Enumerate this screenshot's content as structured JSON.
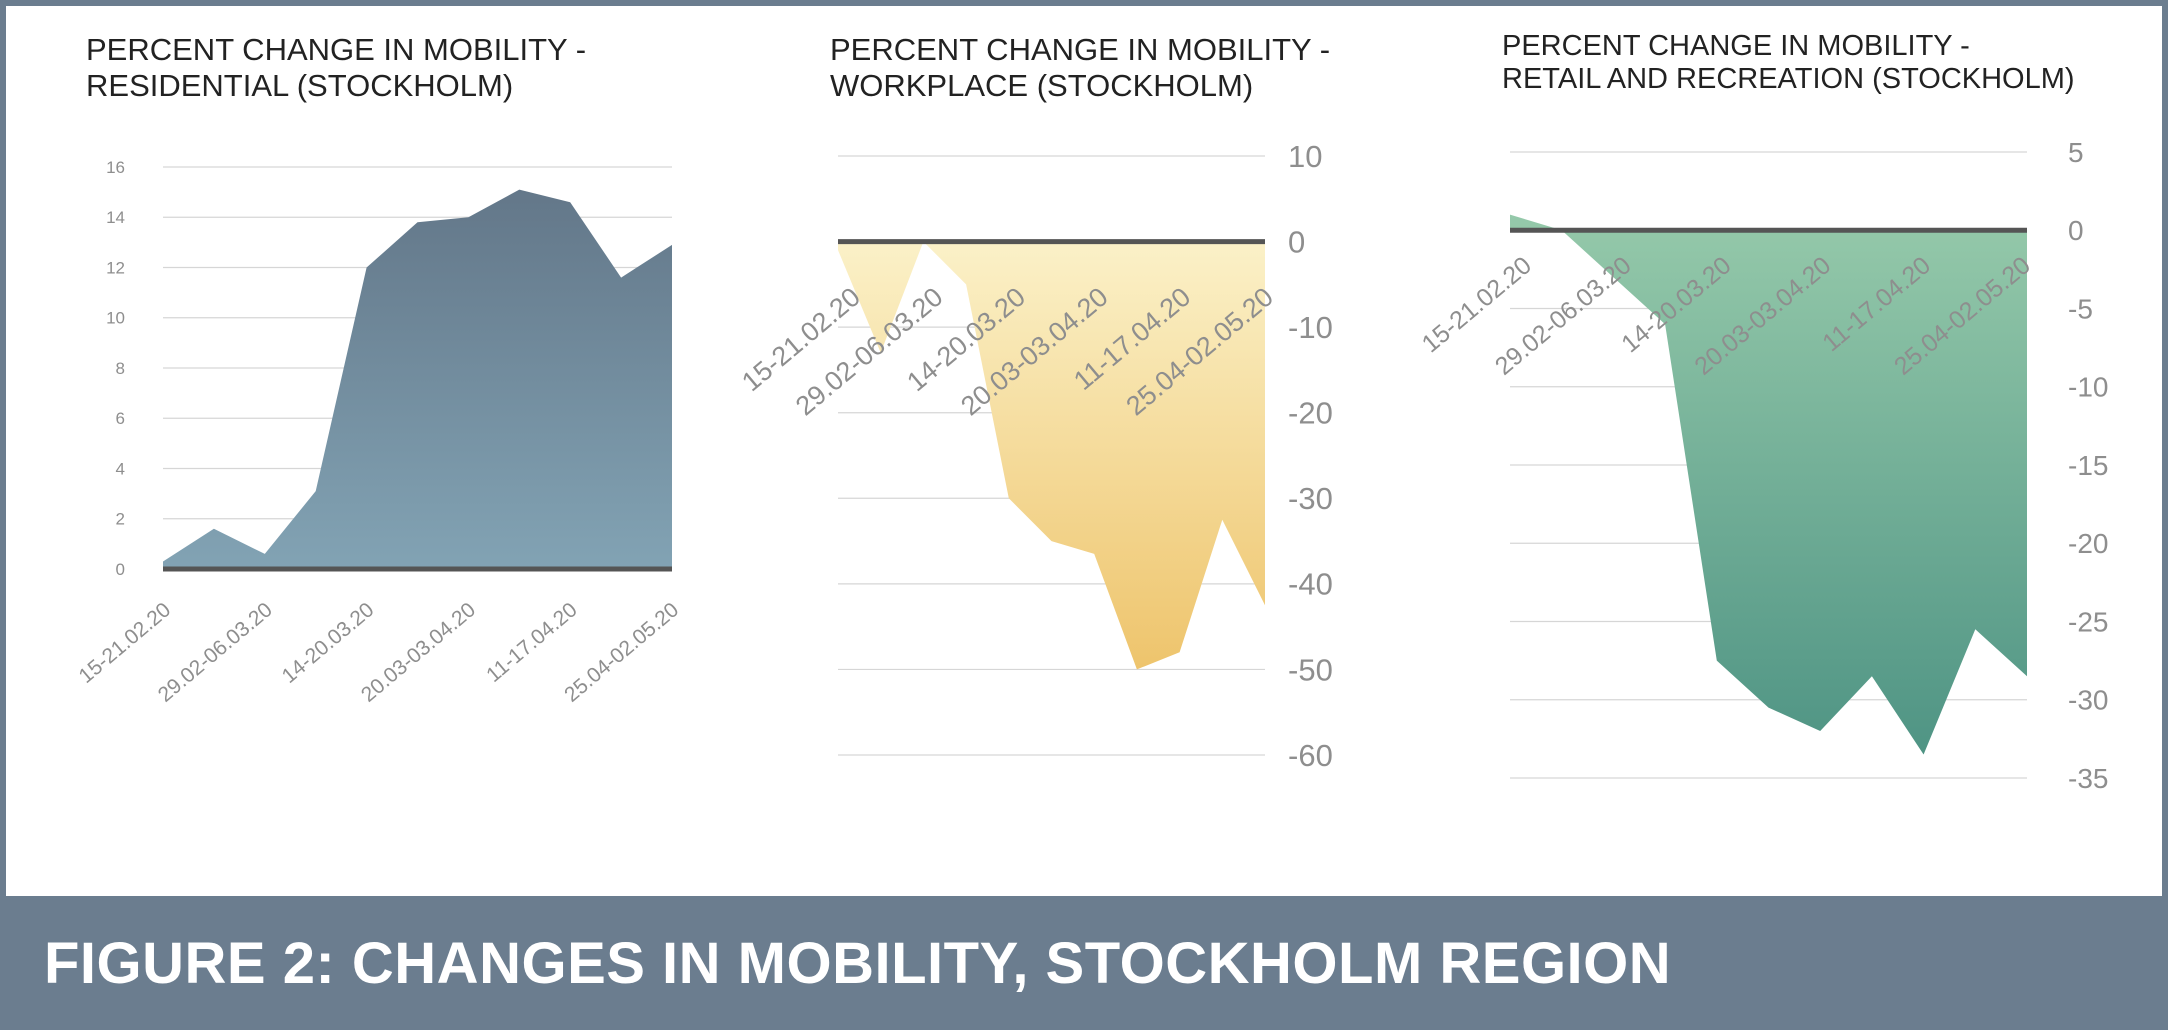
{
  "figure_title": "FIGURE 2: CHANGES IN MOBILITY, STOCKHOLM REGION",
  "colors": {
    "frame": "#6b7d8f",
    "residential_top": "#637789",
    "residential_bottom": "#82a3b4",
    "workplace_top": "#fbf1c8",
    "workplace_bottom": "#eec46c",
    "retail_top": "#95c9aa",
    "retail_bottom": "#4f9484",
    "baseline": "#555555",
    "grid": "#d6d6d6",
    "tick_text": "#8e8e8e"
  },
  "chart_data": [
    {
      "type": "area",
      "title": [
        "PERCENT CHANGE IN MOBILITY -",
        "RESIDENTIAL (STOCKHOLM)"
      ],
      "xlabel": "",
      "ylabel": "",
      "ylim": [
        0,
        16
      ],
      "yticks": [
        "16",
        "14",
        "12",
        "10",
        "8",
        "6",
        "4",
        "2",
        "0"
      ],
      "xticks": [
        "15-21.02.20",
        "29.02-06.03.20",
        "14-20.03.20",
        "20.03-03.04.20",
        "11-17.04.20",
        "25.04-02.05.20"
      ],
      "x_axis_position": "bottom",
      "y_axis_position": "left",
      "grid": true,
      "values": [
        0.3,
        1.6,
        0.6,
        3.1,
        12.0,
        13.8,
        14.0,
        15.1,
        14.6,
        11.6,
        12.9
      ]
    },
    {
      "type": "area",
      "title": [
        "PERCENT CHANGE IN MOBILITY -",
        "WORKPLACE (STOCKHOLM)"
      ],
      "xlabel": "",
      "ylabel": "",
      "ylim": [
        -60,
        10
      ],
      "yticks": [
        "10",
        "0",
        "-10",
        "-20",
        "-30",
        "-40",
        "-50",
        "-60"
      ],
      "xticks": [
        "15-21.02.20",
        "29.02-06.03.20",
        "14-20.03.20",
        "20.03-03.04.20",
        "11-17.04.20",
        "25.04-02.05.20"
      ],
      "x_axis_position": "top",
      "y_axis_position": "right",
      "grid": true,
      "values": [
        -1,
        -13,
        0,
        -5,
        -30,
        -35,
        -36.5,
        -50,
        -48,
        -32.5,
        -42.5
      ]
    },
    {
      "type": "area",
      "title": [
        "PERCENT CHANGE IN MOBILITY -",
        "RETAIL AND RECREATION (STOCKHOLM)"
      ],
      "xlabel": "",
      "ylabel": "",
      "ylim": [
        -35,
        5
      ],
      "yticks": [
        "5",
        "0",
        "-5",
        "-10",
        "-15",
        "-20",
        "-25",
        "-30",
        "-35"
      ],
      "xticks": [
        "15-21.02.20",
        "29.02-06.03.20",
        "14-20.03.20",
        "20.03-03.04.20",
        "11-17.04.20",
        "25.04-02.05.20"
      ],
      "x_axis_position": "top",
      "y_axis_position": "right",
      "grid": true,
      "values": [
        1,
        0,
        -3,
        -6,
        -27.5,
        -30.5,
        -32,
        -28.5,
        -33.5,
        -25.5,
        -28.5
      ]
    }
  ]
}
